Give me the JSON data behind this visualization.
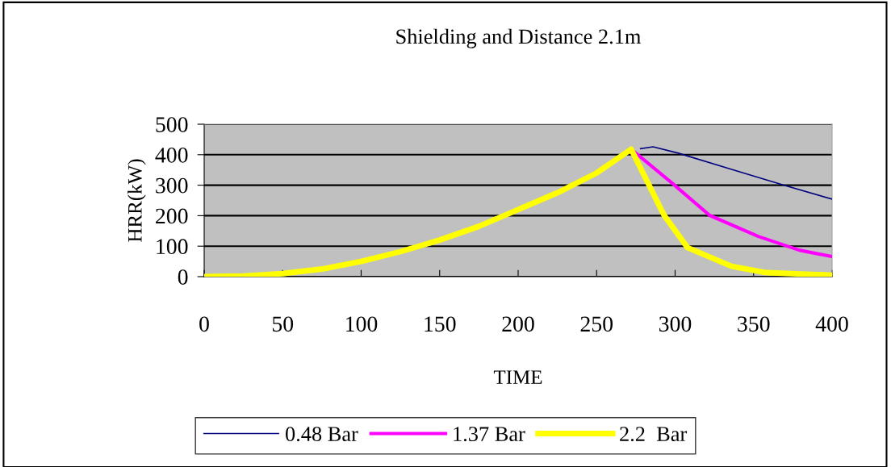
{
  "chart_data": {
    "type": "line",
    "title": "Shielding and Distance 2.1m",
    "xlabel": "TIME",
    "ylabel": "HRR(kW)",
    "xlim": [
      0,
      400
    ],
    "xticks": [
      0,
      50,
      100,
      150,
      200,
      250,
      300,
      350,
      400
    ],
    "ylim": [
      0,
      500
    ],
    "yticks": [
      0,
      100,
      200,
      300,
      400,
      500
    ],
    "grid": "y",
    "legend": "bottom",
    "marker": "none",
    "line_style": "solid",
    "series": [
      {
        "name": "0.48 Bar",
        "color": "#000080",
        "x": [
          278,
          286,
          302,
          336,
          370,
          400
        ],
        "values": [
          420,
          426,
          405,
          352,
          299,
          254
        ]
      },
      {
        "name": "1.37 Bar",
        "color": "#ff00ff",
        "x": [
          272,
          298,
          322,
          353,
          379,
          400
        ],
        "values": [
          418,
          307,
          201,
          132,
          87,
          66
        ]
      },
      {
        "name": "2.2  Bar",
        "color": "#ffff00",
        "x": [
          0,
          25,
          50,
          75,
          100,
          125,
          150,
          175,
          200,
          225,
          250,
          272,
          293,
          308,
          336,
          358,
          400
        ],
        "values": [
          0,
          2,
          10,
          25,
          50,
          82,
          120,
          165,
          220,
          275,
          340,
          418,
          201,
          95,
          34,
          13,
          5
        ]
      }
    ]
  }
}
